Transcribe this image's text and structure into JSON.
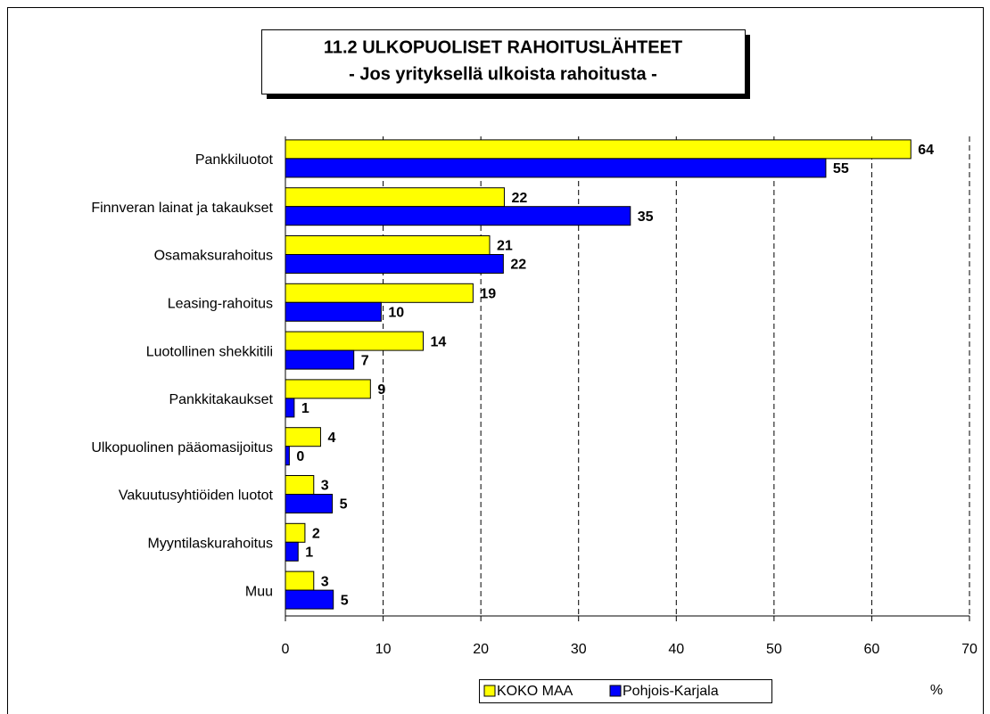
{
  "chart_data": {
    "type": "hbar",
    "title": "11.2 ULKOPUOLISET RAHOITUSLÄHTEET",
    "subtitle": "- Jos yrityksellä ulkoista rahoitusta -",
    "categories": [
      "Pankkiluotot",
      "Finnveran lainat ja takaukset",
      "Osamaksurahoitus",
      "Leasing-rahoitus",
      "Luotollinen shekkitili",
      "Pankkitakaukset",
      "Ulkopuolinen pääomasijoitus",
      "Vakuutusyhtiöiden luotot",
      "Myyntilaskurahoitus",
      "Muu"
    ],
    "series": [
      {
        "name": "KOKO MAA",
        "color": "#ffff00",
        "values": [
          64.0,
          22.4,
          20.9,
          19.2,
          14.1,
          8.7,
          3.6,
          2.9,
          2.0,
          2.9
        ],
        "value_labels": [
          "64",
          "22",
          "21",
          "19",
          "14",
          "9",
          "4",
          "3",
          "2",
          "3"
        ]
      },
      {
        "name": "Pohjois-Karjala",
        "color": "#0000ff",
        "values": [
          55.3,
          35.3,
          22.3,
          9.8,
          7.0,
          0.9,
          0.4,
          4.8,
          1.3,
          4.9
        ],
        "value_labels": [
          "55",
          "35",
          "22",
          "10",
          "7",
          "1",
          "0",
          "5",
          "1",
          "5"
        ]
      }
    ],
    "x_label": "%",
    "xlim": [
      0,
      70
    ],
    "xticks": [
      0,
      10,
      20,
      30,
      40,
      50,
      60,
      70
    ],
    "grid": true
  }
}
